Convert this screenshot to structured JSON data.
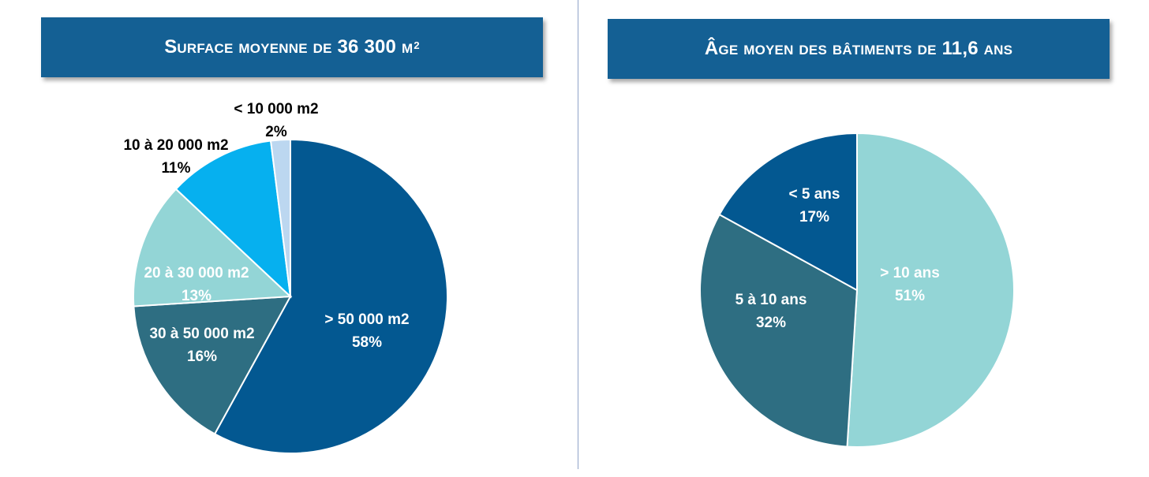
{
  "left_panel": {
    "title": "Surface moyenne de 36 300 m",
    "title_superscript": "2"
  },
  "right_panel": {
    "title": "Âge moyen des bâtiments de 11,6 ans"
  },
  "chart_data": [
    {
      "type": "pie",
      "title": "Surface moyenne de 36 300 m²",
      "slices": [
        {
          "label": "> 50 000 m2",
          "value": 58,
          "value_label": "58%",
          "color": "#035891",
          "label_color": "#ffffff"
        },
        {
          "label": "30 à 50 000 m2",
          "value": 16,
          "value_label": "16%",
          "color": "#2e6e82",
          "label_color": "#ffffff"
        },
        {
          "label": "20 à 30 000 m2",
          "value": 13,
          "value_label": "13%",
          "color": "#93d5d6",
          "label_color": "#ffffff"
        },
        {
          "label": "10 à 20 000 m2",
          "value": 11,
          "value_label": "11%",
          "color": "#06b0ef",
          "label_color": "#000000"
        },
        {
          "label": "< 10 000 m2",
          "value": 2,
          "value_label": "2%",
          "color": "#bcd7f0",
          "label_color": "#000000"
        }
      ]
    },
    {
      "type": "pie",
      "title": "Âge moyen des bâtiments de 11,6 ans",
      "slices": [
        {
          "label": "> 10 ans",
          "value": 51,
          "value_label": "51%",
          "color": "#93d5d6",
          "label_color": "#ffffff"
        },
        {
          "label": "5 à 10 ans",
          "value": 32,
          "value_label": "32%",
          "color": "#2e6e82",
          "label_color": "#ffffff"
        },
        {
          "label": "< 5 ans",
          "value": 17,
          "value_label": "17%",
          "color": "#035891",
          "label_color": "#ffffff"
        }
      ]
    }
  ]
}
